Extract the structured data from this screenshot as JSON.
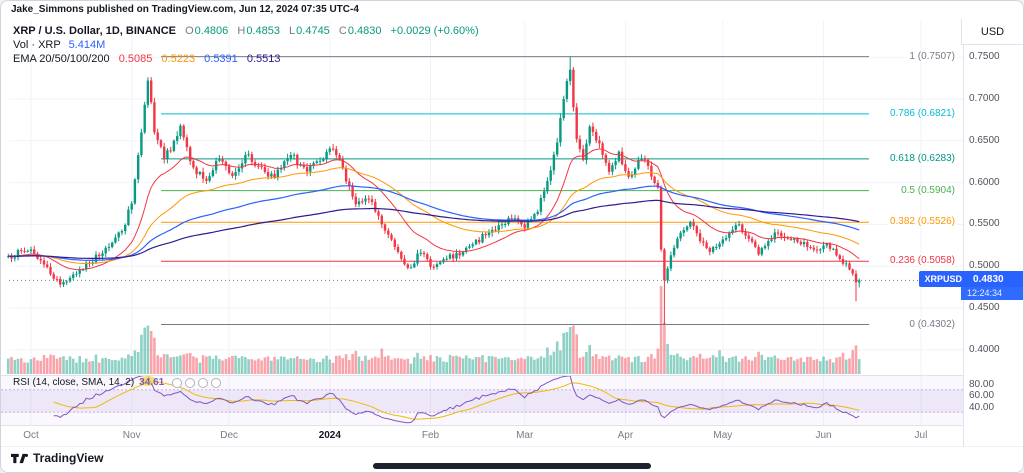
{
  "meta": {
    "published": "Jake_Simmons published on TradingView.com, Jun 12, 2024 07:35 UTC-4"
  },
  "header": {
    "symbol": "XRP / U.S. Dollar, 1D, BINANCE",
    "ohlc": {
      "o_label": "O",
      "o": "0.4806",
      "h_label": "H",
      "h": "0.4853",
      "l_label": "L",
      "l": "0.4745",
      "c_label": "C",
      "c": "0.4830",
      "change": "+0.0029 (+0.60%)"
    },
    "volume_row": {
      "label": "Vol · XRP",
      "value": "5.414M"
    },
    "ema_row": {
      "label": "EMA 20/50/100/200",
      "values": [
        "0.5085",
        "0.5223",
        "0.5391",
        "0.5513"
      ],
      "colors": [
        "#f23645",
        "#ff9800",
        "#2962ff",
        "#311b92"
      ]
    }
  },
  "price_scale": {
    "currency": "USD",
    "ticks": [
      "0.7500",
      "0.7000",
      "0.6500",
      "0.6000",
      "0.5500",
      "0.5000",
      "0.4500",
      "0.4000"
    ],
    "tick_values": [
      0.75,
      0.7,
      0.65,
      0.6,
      0.55,
      0.5,
      0.45,
      0.4
    ]
  },
  "price_badge": {
    "symbol": "XRPUSD",
    "price": "0.4830",
    "countdown": "12:24:34",
    "value": 0.483,
    "color": "#2962ff"
  },
  "fib_levels": [
    {
      "label": "1 (0.7507)",
      "value": 0.7507,
      "color": "#787b86"
    },
    {
      "label": "0.786 (0.6821)",
      "value": 0.6821,
      "color": "#00bcd4"
    },
    {
      "label": "0.618 (0.6283)",
      "value": 0.6283,
      "color": "#009688"
    },
    {
      "label": "0.5 (0.5904)",
      "value": 0.5904,
      "color": "#4caf50"
    },
    {
      "label": "0.382 (0.5526)",
      "value": 0.5526,
      "color": "#ff9800"
    },
    {
      "label": "0.236 (0.5058)",
      "value": 0.5058,
      "color": "#f23645"
    },
    {
      "label": "0 (0.4302)",
      "value": 0.4302,
      "color": "#787b86"
    }
  ],
  "rsi": {
    "legend": "RSI (14, close, SMA, 14, 2)",
    "value": "34.61",
    "ticks": [
      "80.00",
      "60.00",
      "40.00"
    ],
    "tick_values": [
      80,
      60,
      40
    ],
    "line_color": "#7e57c2",
    "sma_color": "#f0b90b",
    "band_color": "rgba(126,87,194,0.1)"
  },
  "time_axis": {
    "labels": [
      {
        "text": "Oct",
        "day": 0
      },
      {
        "text": "Nov",
        "day": 31
      },
      {
        "text": "Dec",
        "day": 61
      },
      {
        "text": "2024",
        "day": 92,
        "year": true
      },
      {
        "text": "Feb",
        "day": 123
      },
      {
        "text": "Mar",
        "day": 152
      },
      {
        "text": "Apr",
        "day": 183
      },
      {
        "text": "May",
        "day": 213
      },
      {
        "text": "Jun",
        "day": 244
      },
      {
        "text": "Jul",
        "day": 274
      }
    ]
  },
  "footer": {
    "logo_text": "TradingView"
  },
  "chart_data": {
    "type": "candlestick",
    "symbol": "XRPUSD",
    "exchange": "BINANCE",
    "timeframe": "1D",
    "title": "XRP / U.S. Dollar",
    "ylim": [
      0.38,
      0.78
    ],
    "up_color": "#089981",
    "down_color": "#f23645",
    "last_candle": {
      "o": 0.4806,
      "h": 0.4853,
      "l": 0.4745,
      "c": 0.483
    },
    "price_path": [
      [
        -7,
        0.512
      ],
      [
        0,
        0.52
      ],
      [
        4,
        0.502
      ],
      [
        9,
        0.478
      ],
      [
        13,
        0.49
      ],
      [
        18,
        0.503
      ],
      [
        23,
        0.522
      ],
      [
        28,
        0.542
      ],
      [
        31,
        0.575
      ],
      [
        34,
        0.66
      ],
      [
        36,
        0.722
      ],
      [
        38,
        0.66
      ],
      [
        41,
        0.628
      ],
      [
        44,
        0.65
      ],
      [
        46,
        0.668
      ],
      [
        50,
        0.618
      ],
      [
        54,
        0.602
      ],
      [
        58,
        0.628
      ],
      [
        62,
        0.608
      ],
      [
        66,
        0.633
      ],
      [
        70,
        0.62
      ],
      [
        75,
        0.606
      ],
      [
        80,
        0.633
      ],
      [
        85,
        0.613
      ],
      [
        90,
        0.628
      ],
      [
        93,
        0.64
      ],
      [
        96,
        0.617
      ],
      [
        100,
        0.574
      ],
      [
        104,
        0.58
      ],
      [
        108,
        0.55
      ],
      [
        112,
        0.523
      ],
      [
        116,
        0.498
      ],
      [
        120,
        0.516
      ],
      [
        124,
        0.499
      ],
      [
        128,
        0.509
      ],
      [
        132,
        0.513
      ],
      [
        136,
        0.526
      ],
      [
        140,
        0.537
      ],
      [
        144,
        0.549
      ],
      [
        148,
        0.557
      ],
      [
        152,
        0.546
      ],
      [
        156,
        0.565
      ],
      [
        159,
        0.602
      ],
      [
        162,
        0.648
      ],
      [
        164,
        0.7
      ],
      [
        166,
        0.735
      ],
      [
        168,
        0.652
      ],
      [
        170,
        0.627
      ],
      [
        172,
        0.667
      ],
      [
        175,
        0.647
      ],
      [
        178,
        0.613
      ],
      [
        181,
        0.637
      ],
      [
        184,
        0.607
      ],
      [
        187,
        0.627
      ],
      [
        190,
        0.62
      ],
      [
        193,
        0.594
      ],
      [
        194,
        0.52
      ],
      [
        195,
        0.483
      ],
      [
        197,
        0.513
      ],
      [
        200,
        0.54
      ],
      [
        203,
        0.553
      ],
      [
        206,
        0.53
      ],
      [
        209,
        0.517
      ],
      [
        212,
        0.527
      ],
      [
        215,
        0.54
      ],
      [
        218,
        0.55
      ],
      [
        221,
        0.533
      ],
      [
        224,
        0.514
      ],
      [
        227,
        0.53
      ],
      [
        230,
        0.54
      ],
      [
        233,
        0.533
      ],
      [
        236,
        0.529
      ],
      [
        239,
        0.523
      ],
      [
        242,
        0.519
      ],
      [
        245,
        0.527
      ],
      [
        248,
        0.513
      ],
      [
        250,
        0.503
      ],
      [
        252,
        0.496
      ],
      [
        254,
        0.4806
      ],
      [
        255,
        0.483
      ]
    ],
    "overrides": {
      "166": {
        "h": 0.7507
      },
      "195": {
        "l": 0.4302
      },
      "254": {
        "l": 0.458
      },
      "255": {
        "o": 0.4806,
        "h": 0.4853,
        "l": 0.4745,
        "c": 0.483
      }
    },
    "volume_spikes": {
      "34": 3.2,
      "35": 4.2,
      "36": 5.6,
      "37": 3.4,
      "38": 2.4,
      "100": 2.2,
      "108": 1.8,
      "159": 2,
      "162": 2.6,
      "164": 3.6,
      "165": 4.4,
      "166": 5.8,
      "167": 3.2,
      "168": 2.6,
      "172": 2,
      "193": 2.6,
      "194": 6.2,
      "195": 4,
      "196": 2.4,
      "212": 1.6,
      "224": 2,
      "250": 1.6,
      "253": 1.8,
      "254": 2
    }
  }
}
